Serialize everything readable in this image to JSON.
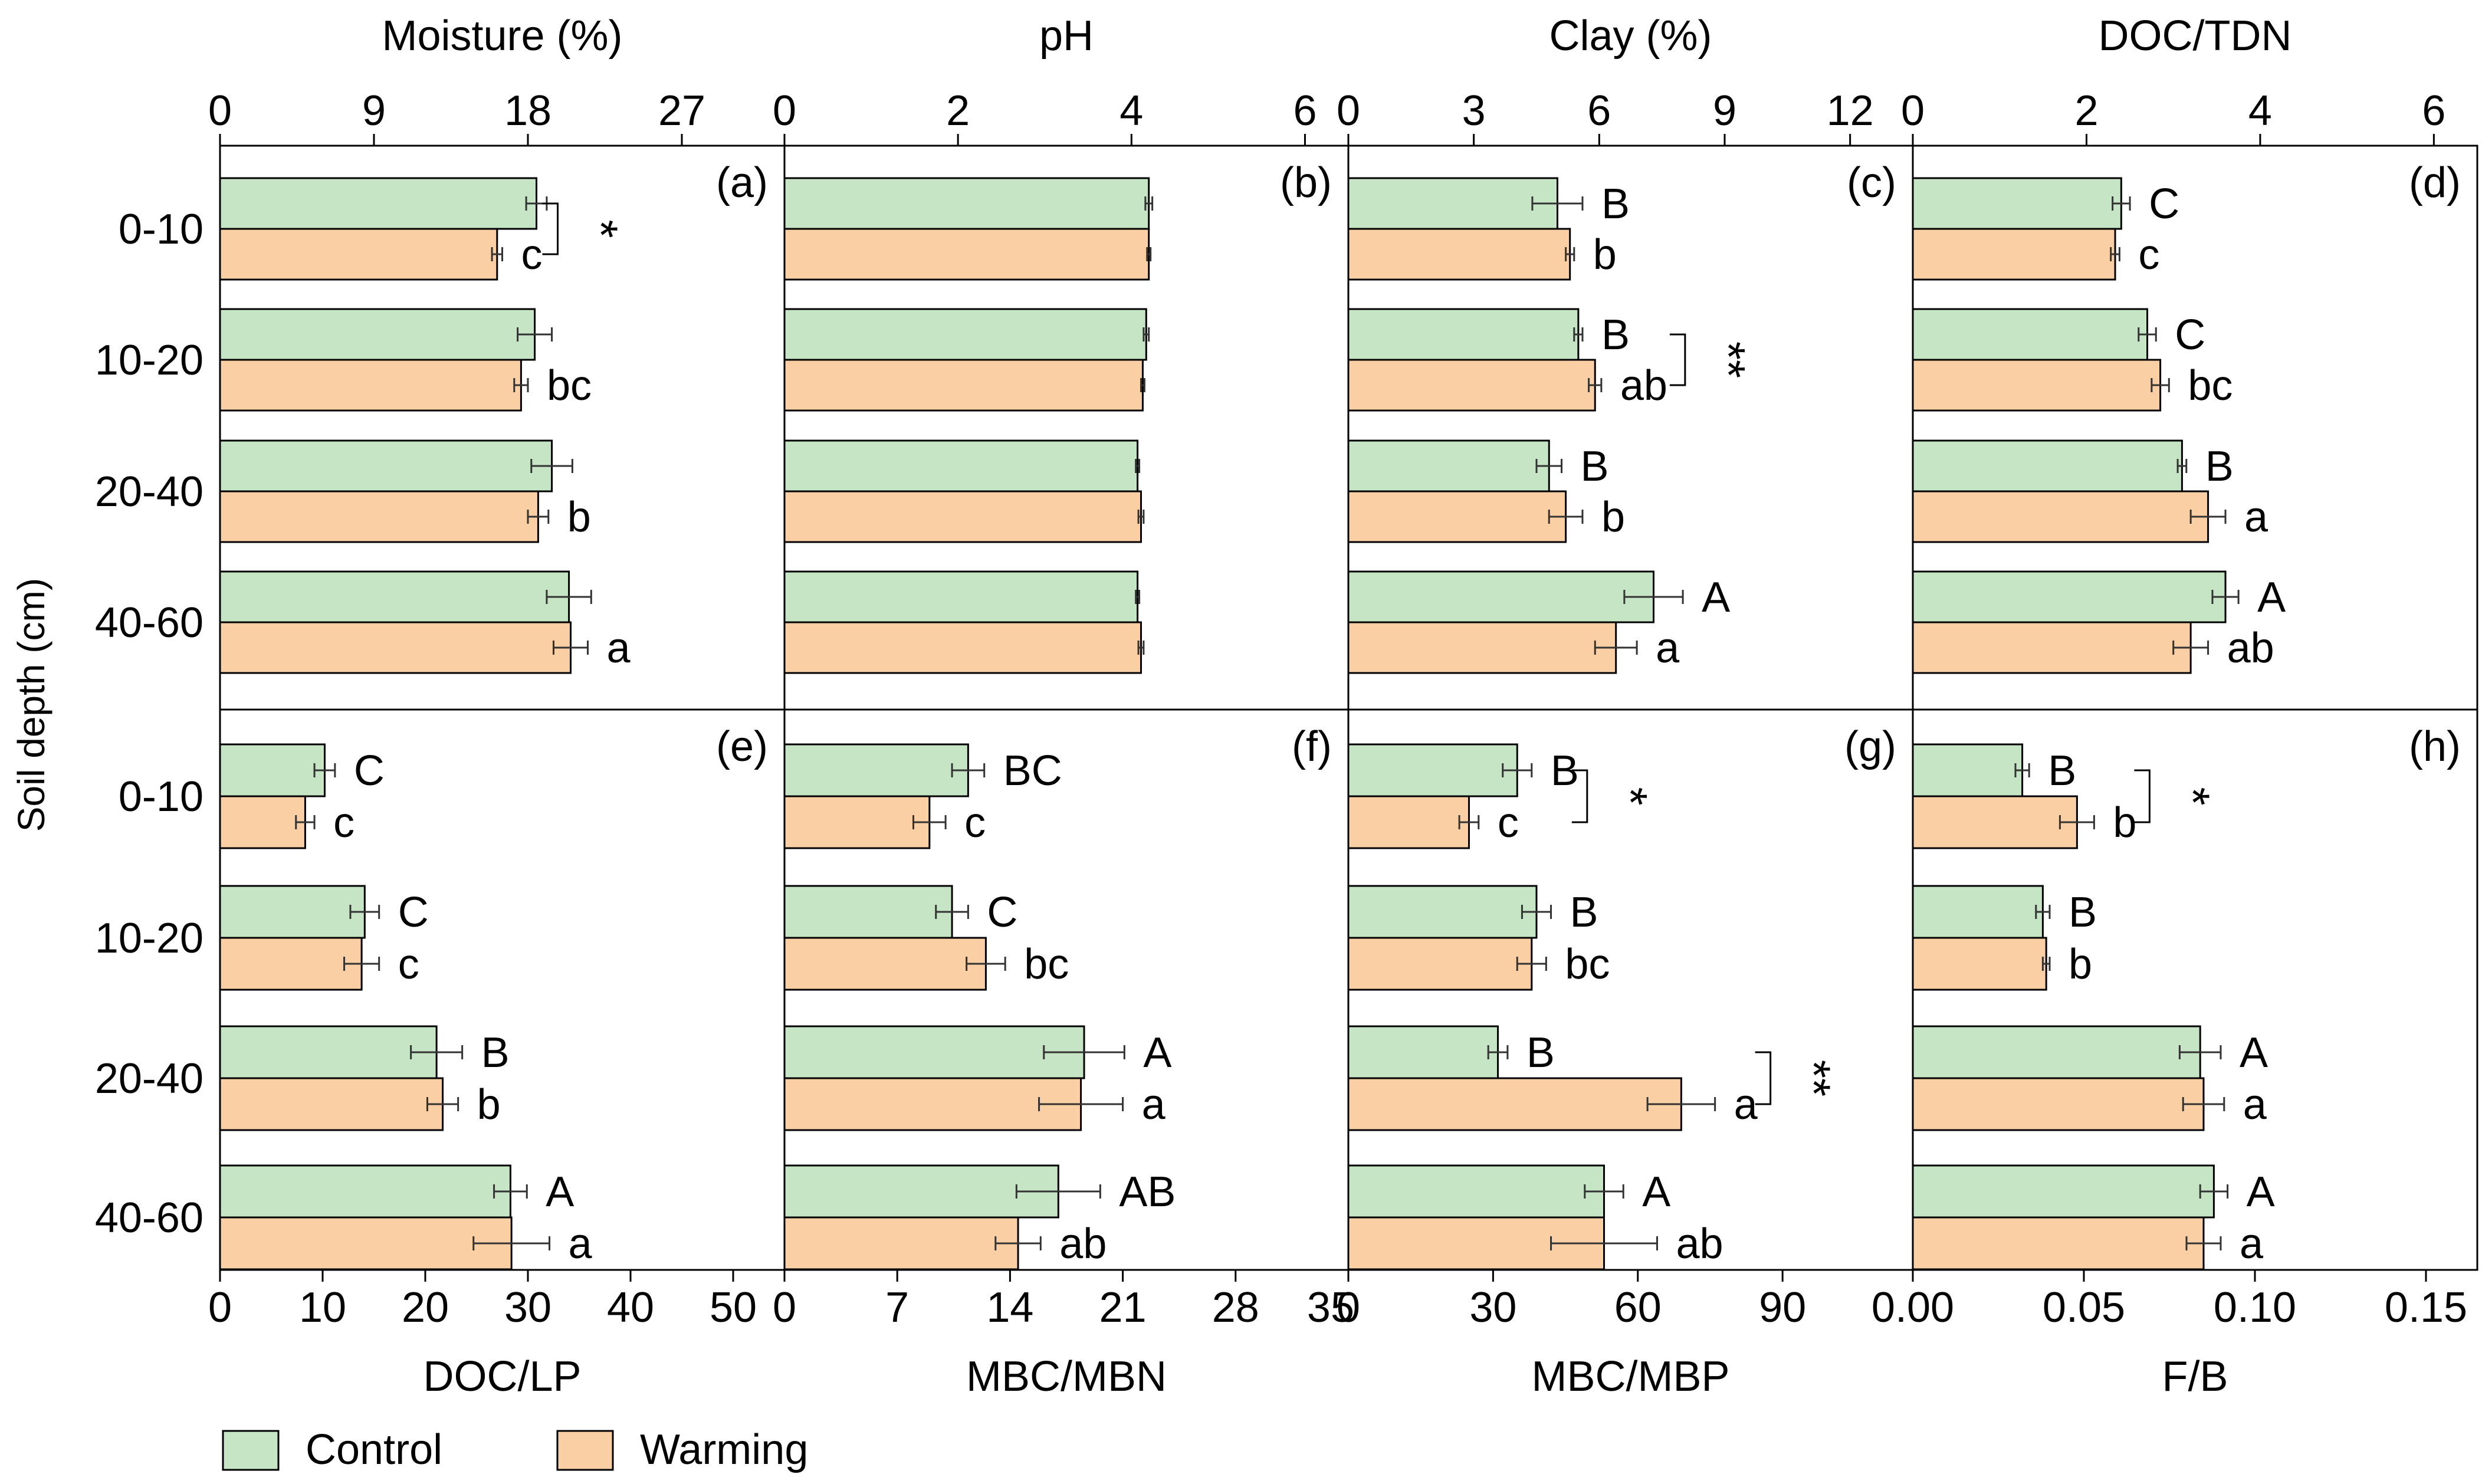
{
  "figure": {
    "ylabel": "Soil depth (cm)",
    "depths": [
      "0-10",
      "10-20",
      "20-40",
      "40-60"
    ],
    "legend": {
      "placement": "bottom-left",
      "items": [
        {
          "label": "Control",
          "color": "#c5e5c4"
        },
        {
          "label": "Warming",
          "color": "#f9cfa3"
        }
      ]
    },
    "colors": {
      "control": "#c5e5c4",
      "warming": "#f9cfa3",
      "edge": "#000000"
    }
  },
  "chart_data": [
    {
      "type": "bar",
      "orientation": "horizontal",
      "panel_label": "(a)",
      "xlabel": "Moisture (%)",
      "axis_position": "top",
      "xlim": [
        0,
        33
      ],
      "xticks": [
        0,
        9,
        18,
        27
      ],
      "categories": [
        "0-10",
        "10-20",
        "20-40",
        "40-60"
      ],
      "series": [
        {
          "name": "Control",
          "values": [
            18.5,
            18.4,
            19.4,
            20.4
          ],
          "errors": [
            0.6,
            1.0,
            1.2,
            1.3
          ],
          "letters": [
            "",
            "",
            "",
            ""
          ]
        },
        {
          "name": "Warming",
          "values": [
            16.2,
            17.6,
            18.6,
            20.5
          ],
          "errors": [
            0.3,
            0.4,
            0.6,
            1.0
          ],
          "letters": [
            "c",
            "bc",
            "b",
            "a"
          ]
        }
      ],
      "significance": [
        {
          "depth": "0-10",
          "mark": "*"
        }
      ]
    },
    {
      "type": "bar",
      "orientation": "horizontal",
      "panel_label": "(b)",
      "xlabel": "pH",
      "axis_position": "top",
      "xlim": [
        0,
        6.5
      ],
      "xticks": [
        0,
        2,
        4,
        6
      ],
      "categories": [
        "0-10",
        "10-20",
        "20-40",
        "40-60"
      ],
      "series": [
        {
          "name": "Control",
          "values": [
            4.2,
            4.17,
            4.07,
            4.07
          ],
          "errors": [
            0.04,
            0.03,
            0.02,
            0.02
          ],
          "letters": [
            "",
            "",
            "",
            ""
          ]
        },
        {
          "name": "Warming",
          "values": [
            4.2,
            4.13,
            4.11,
            4.11
          ],
          "errors": [
            0.02,
            0.02,
            0.03,
            0.03
          ],
          "letters": [
            "",
            "",
            "",
            ""
          ]
        }
      ],
      "significance": []
    },
    {
      "type": "bar",
      "orientation": "horizontal",
      "panel_label": "(c)",
      "xlabel": "Clay (%)",
      "axis_position": "top",
      "xlim": [
        0,
        13.5
      ],
      "xticks": [
        0,
        3,
        6,
        9,
        12
      ],
      "categories": [
        "0-10",
        "10-20",
        "20-40",
        "40-60"
      ],
      "series": [
        {
          "name": "Control",
          "values": [
            5.0,
            5.5,
            4.8,
            7.3
          ],
          "errors": [
            0.6,
            0.1,
            0.3,
            0.7
          ],
          "letters": [
            "B",
            "B",
            "B",
            "A"
          ]
        },
        {
          "name": "Warming",
          "values": [
            5.3,
            5.9,
            5.2,
            6.4
          ],
          "errors": [
            0.1,
            0.15,
            0.4,
            0.5
          ],
          "letters": [
            "b",
            "ab",
            "b",
            "a"
          ]
        }
      ],
      "significance": [
        {
          "depth": "10-20",
          "mark": "**"
        }
      ]
    },
    {
      "type": "bar",
      "orientation": "horizontal",
      "panel_label": "(d)",
      "xlabel": "DOC/TDN",
      "axis_position": "top",
      "xlim": [
        0,
        6.5
      ],
      "xticks": [
        0,
        2,
        4,
        6
      ],
      "categories": [
        "0-10",
        "10-20",
        "20-40",
        "40-60"
      ],
      "series": [
        {
          "name": "Control",
          "values": [
            2.4,
            2.7,
            3.1,
            3.6
          ],
          "errors": [
            0.1,
            0.1,
            0.05,
            0.15
          ],
          "letters": [
            "C",
            "C",
            "B",
            "A"
          ]
        },
        {
          "name": "Warming",
          "values": [
            2.33,
            2.85,
            3.4,
            3.2
          ],
          "errors": [
            0.05,
            0.1,
            0.2,
            0.2
          ],
          "letters": [
            "c",
            "bc",
            "a",
            "ab"
          ]
        }
      ],
      "significance": []
    },
    {
      "type": "bar",
      "orientation": "horizontal",
      "panel_label": "(e)",
      "xlabel": "DOC/LP",
      "axis_position": "bottom",
      "xlim": [
        0,
        55
      ],
      "xticks": [
        0,
        10,
        20,
        30,
        40,
        50
      ],
      "categories": [
        "0-10",
        "10-20",
        "20-40",
        "40-60"
      ],
      "series": [
        {
          "name": "Control",
          "values": [
            10.2,
            14.1,
            21.1,
            28.3
          ],
          "errors": [
            1.0,
            1.4,
            2.5,
            1.6
          ],
          "letters": [
            "C",
            "C",
            "B",
            "A"
          ]
        },
        {
          "name": "Warming",
          "values": [
            8.3,
            13.8,
            21.7,
            28.4
          ],
          "errors": [
            0.9,
            1.7,
            1.5,
            3.7
          ],
          "letters": [
            "c",
            "c",
            "b",
            "a"
          ]
        }
      ],
      "significance": []
    },
    {
      "type": "bar",
      "orientation": "horizontal",
      "panel_label": "(f)",
      "xlabel": "MBC/MBN",
      "axis_position": "bottom",
      "xlim": [
        0,
        35
      ],
      "xticks": [
        0,
        7,
        14,
        21,
        28,
        35
      ],
      "categories": [
        "0-10",
        "10-20",
        "20-40",
        "40-60"
      ],
      "series": [
        {
          "name": "Control",
          "values": [
            11.4,
            10.4,
            18.6,
            17.0
          ],
          "errors": [
            1.0,
            1.0,
            2.5,
            2.6
          ],
          "letters": [
            "BC",
            "C",
            "A",
            "AB"
          ]
        },
        {
          "name": "Warming",
          "values": [
            9.0,
            12.5,
            18.4,
            14.5
          ],
          "errors": [
            1.0,
            1.2,
            2.6,
            1.4
          ],
          "letters": [
            "c",
            "bc",
            "a",
            "ab"
          ]
        }
      ],
      "significance": []
    },
    {
      "type": "bar",
      "orientation": "horizontal",
      "panel_label": "(g)",
      "xlabel": "MBC/MBP",
      "axis_position": "bottom",
      "xlim": [
        0,
        117
      ],
      "xticks": [
        0,
        30,
        60,
        90
      ],
      "categories": [
        "0-10",
        "10-20",
        "20-40",
        "40-60"
      ],
      "series": [
        {
          "name": "Control",
          "values": [
            35,
            39,
            31,
            53
          ],
          "errors": [
            3,
            3,
            2,
            4
          ],
          "letters": [
            "B",
            "B",
            "B",
            "A"
          ]
        },
        {
          "name": "Warming",
          "values": [
            25,
            38,
            69,
            53
          ],
          "errors": [
            2,
            3,
            7,
            11
          ],
          "letters": [
            "c",
            "bc",
            "a",
            "ab"
          ]
        }
      ],
      "significance": [
        {
          "depth": "0-10",
          "mark": "*"
        },
        {
          "depth": "20-40",
          "mark": "**"
        }
      ]
    },
    {
      "type": "bar",
      "orientation": "horizontal",
      "panel_label": "(h)",
      "xlabel": "F/B",
      "axis_position": "bottom",
      "xlim": [
        0,
        0.165
      ],
      "xticks": [
        0.0,
        0.05,
        0.1,
        0.15
      ],
      "xtick_labels": [
        "0.00",
        "0.05",
        "0.10",
        "0.15"
      ],
      "categories": [
        "0-10",
        "10-20",
        "20-40",
        "40-60"
      ],
      "series": [
        {
          "name": "Control",
          "values": [
            0.032,
            0.038,
            0.084,
            0.088
          ],
          "errors": [
            0.002,
            0.002,
            0.006,
            0.004
          ],
          "letters": [
            "B",
            "B",
            "A",
            "A"
          ]
        },
        {
          "name": "Warming",
          "values": [
            0.048,
            0.039,
            0.085,
            0.085
          ],
          "errors": [
            0.005,
            0.001,
            0.006,
            0.005
          ],
          "letters": [
            "b",
            "b",
            "a",
            "a"
          ]
        }
      ],
      "significance": [
        {
          "depth": "0-10",
          "mark": "*"
        }
      ]
    }
  ]
}
